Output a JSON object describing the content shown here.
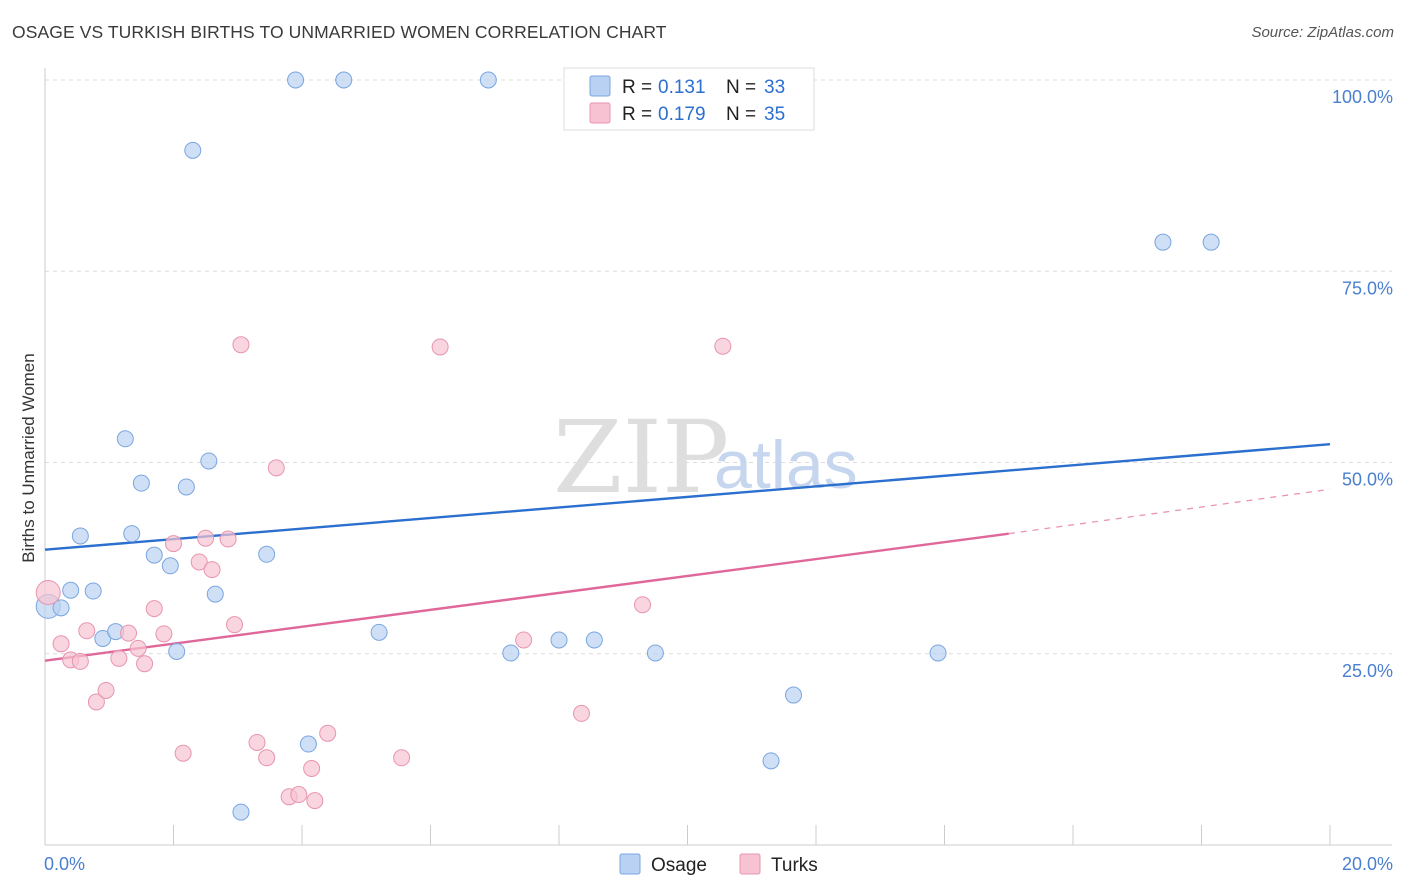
{
  "header": {
    "title": "OSAGE VS TURKISH BIRTHS TO UNMARRIED WOMEN CORRELATION CHART",
    "source": "Source: ZipAtlas.com"
  },
  "watermark": {
    "zip": "ZIP",
    "atlas": "atlas"
  },
  "legend": {
    "r_label": "R =",
    "n_label": "N =",
    "rows": [
      {
        "r": "0.131",
        "n": "33"
      },
      {
        "r": "0.179",
        "n": "35"
      }
    ]
  },
  "colors": {
    "osage_fill": "#b9d1f2",
    "osage_stroke": "#7aa6e0",
    "osage_line": "#2b6fcf",
    "turks_fill": "#f7c3d2",
    "turks_stroke": "#e894b0",
    "turks_line": "#e0679a"
  },
  "chart_data": {
    "type": "scatter",
    "title": "OSAGE VS TURKISH BIRTHS TO UNMARRIED WOMEN CORRELATION CHART",
    "xlabel": "",
    "ylabel": "Births to Unmarried Women",
    "xlim": [
      0,
      20
    ],
    "ylim": [
      0,
      100
    ],
    "x_tick_labels": [
      "0.0%",
      "20.0%"
    ],
    "y_ticks": [
      25,
      50,
      75,
      100
    ],
    "y_tick_labels": [
      "25.0%",
      "50.0%",
      "75.0%",
      "100.0%"
    ],
    "grid": true,
    "legend": [
      "Osage",
      "Turks"
    ],
    "series": [
      {
        "name": "Osage",
        "points": [
          [
            0.05,
            31.2
          ],
          [
            0.25,
            31.0
          ],
          [
            0.4,
            33.3
          ],
          [
            0.75,
            33.2
          ],
          [
            0.55,
            40.4
          ],
          [
            0.9,
            27.0
          ],
          [
            1.1,
            27.9
          ],
          [
            1.25,
            53.1
          ],
          [
            1.35,
            40.7
          ],
          [
            1.5,
            47.3
          ],
          [
            1.7,
            37.9
          ],
          [
            1.95,
            36.5
          ],
          [
            2.05,
            25.3
          ],
          [
            2.2,
            46.8
          ],
          [
            2.3,
            90.8
          ],
          [
            2.55,
            50.2
          ],
          [
            2.65,
            32.8
          ],
          [
            3.05,
            4.3
          ],
          [
            3.45,
            38.0
          ],
          [
            3.9,
            100
          ],
          [
            4.1,
            13.2
          ],
          [
            4.65,
            100
          ],
          [
            5.2,
            27.8
          ],
          [
            6.9,
            100
          ],
          [
            7.25,
            25.1
          ],
          [
            8.0,
            26.8
          ],
          [
            8.55,
            26.8
          ],
          [
            9.5,
            25.1
          ],
          [
            11.3,
            11.0
          ],
          [
            11.65,
            19.6
          ],
          [
            13.9,
            25.1
          ],
          [
            17.4,
            78.8
          ],
          [
            18.15,
            78.8
          ]
        ],
        "trend": [
          [
            0,
            38.6
          ],
          [
            20,
            52.4
          ]
        ]
      },
      {
        "name": "Turks",
        "points": [
          [
            0.05,
            33.0
          ],
          [
            0.25,
            26.3
          ],
          [
            0.4,
            24.2
          ],
          [
            0.55,
            24.0
          ],
          [
            0.65,
            28.0
          ],
          [
            0.8,
            18.7
          ],
          [
            0.95,
            20.2
          ],
          [
            1.15,
            24.4
          ],
          [
            1.3,
            27.7
          ],
          [
            1.45,
            25.7
          ],
          [
            1.55,
            23.7
          ],
          [
            1.7,
            30.9
          ],
          [
            1.85,
            27.6
          ],
          [
            2.0,
            39.4
          ],
          [
            2.15,
            12.0
          ],
          [
            2.4,
            37.0
          ],
          [
            2.5,
            40.1
          ],
          [
            2.6,
            36.0
          ],
          [
            2.85,
            40.0
          ],
          [
            2.95,
            28.8
          ],
          [
            3.05,
            65.4
          ],
          [
            3.3,
            13.4
          ],
          [
            3.45,
            11.4
          ],
          [
            3.6,
            49.3
          ],
          [
            3.8,
            6.3
          ],
          [
            3.95,
            6.6
          ],
          [
            4.15,
            10.0
          ],
          [
            4.2,
            5.8
          ],
          [
            4.4,
            14.6
          ],
          [
            5.55,
            11.4
          ],
          [
            6.15,
            65.1
          ],
          [
            7.45,
            26.8
          ],
          [
            8.35,
            17.2
          ],
          [
            9.3,
            31.4
          ],
          [
            10.55,
            65.2
          ]
        ],
        "trend": [
          [
            0,
            24.1
          ],
          [
            15,
            40.7
          ]
        ],
        "trend_dashed": [
          [
            15,
            40.7
          ],
          [
            20,
            46.5
          ]
        ]
      }
    ]
  }
}
